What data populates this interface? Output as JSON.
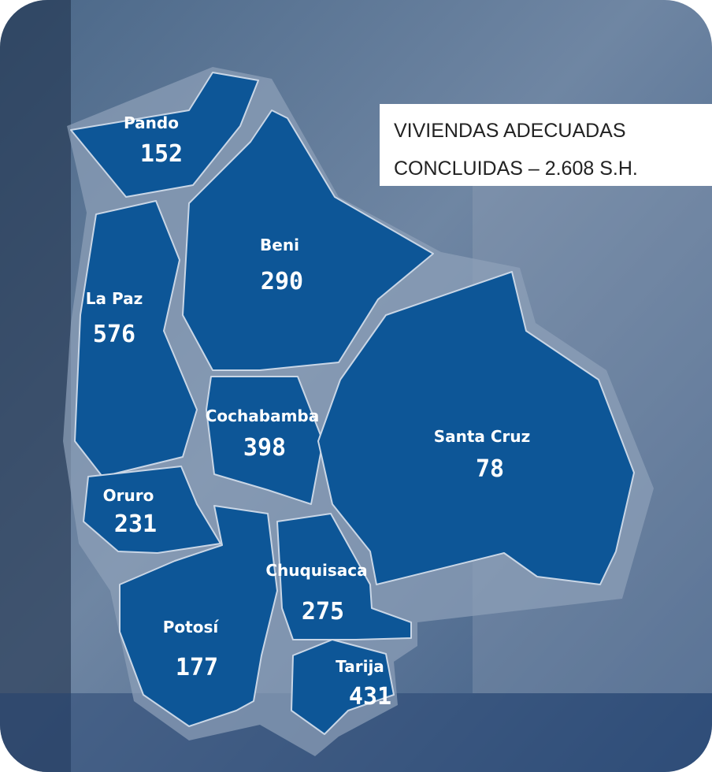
{
  "title": [
    "VIVIENDAS ADECUADAS",
    "CONCLUIDAS – 2.608 S.H."
  ],
  "departments": [
    {
      "name": "Pando",
      "value": "152"
    },
    {
      "name": "Beni",
      "value": "290"
    },
    {
      "name": "La Paz",
      "value": "576"
    },
    {
      "name": "Cochabamba",
      "value": "398"
    },
    {
      "name": "Santa Cruz",
      "value": "78"
    },
    {
      "name": "Oruro",
      "value": "231"
    },
    {
      "name": "Potosí",
      "value": "177"
    },
    {
      "name": "Chuquisaca",
      "value": "275"
    },
    {
      "name": "Tarija",
      "value": "431"
    }
  ]
}
